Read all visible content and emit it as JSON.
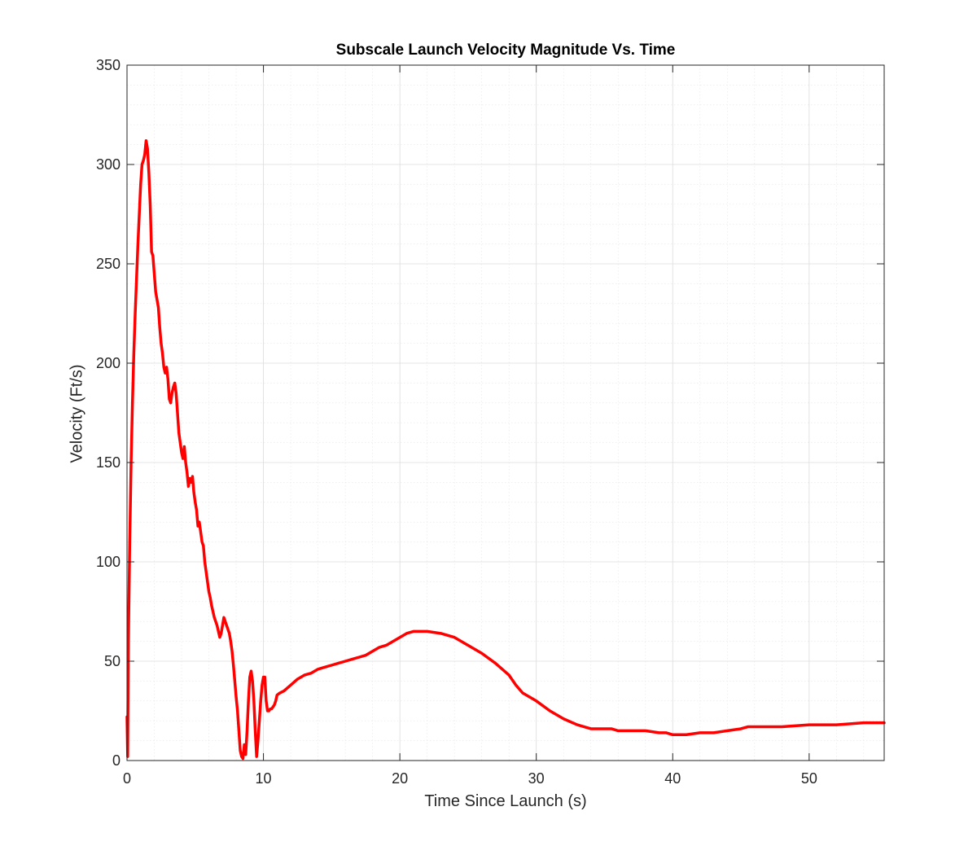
{
  "chart_data": {
    "type": "line",
    "title": "Subscale Launch Velocity Magnitude Vs. Time",
    "xlabel": "Time Since Launch (s)",
    "ylabel": "Velocity (Ft/s)",
    "xlim": [
      0,
      55.5
    ],
    "ylim": [
      0,
      350
    ],
    "xticks": [
      0,
      10,
      20,
      30,
      40,
      50
    ],
    "yticks": [
      0,
      50,
      100,
      150,
      200,
      250,
      300,
      350
    ],
    "xminor_step": 2,
    "yminor_step": 10,
    "grid": true,
    "minor_grid": true,
    "legend": "none",
    "series": [
      {
        "color": "#ff0000",
        "x": [
          0,
          0.05,
          0.1,
          0.2,
          0.3,
          0.4,
          0.5,
          0.6,
          0.8,
          1.0,
          1.1,
          1.2,
          1.3,
          1.4,
          1.5,
          1.6,
          1.7,
          1.8,
          1.9,
          2.0,
          2.1,
          2.2,
          2.3,
          2.4,
          2.5,
          2.6,
          2.7,
          2.8,
          2.9,
          3.0,
          3.1,
          3.2,
          3.3,
          3.4,
          3.5,
          3.6,
          3.7,
          3.8,
          3.9,
          4.0,
          4.1,
          4.2,
          4.3,
          4.4,
          4.5,
          4.6,
          4.7,
          4.8,
          4.9,
          5.0,
          5.1,
          5.2,
          5.3,
          5.4,
          5.5,
          5.6,
          5.7,
          5.8,
          5.9,
          6.0,
          6.1,
          6.2,
          6.3,
          6.4,
          6.5,
          6.6,
          6.7,
          6.8,
          6.9,
          7.0,
          7.1,
          7.2,
          7.3,
          7.4,
          7.5,
          7.6,
          7.7,
          7.8,
          7.9,
          8.0,
          8.1,
          8.2,
          8.3,
          8.4,
          8.5,
          8.6,
          8.7,
          8.8,
          8.9,
          9.0,
          9.1,
          9.2,
          9.3,
          9.4,
          9.5,
          9.6,
          9.7,
          9.8,
          9.9,
          10.0,
          10.1,
          10.2,
          10.3,
          10.4,
          10.5,
          10.6,
          10.7,
          10.8,
          10.9,
          11.0,
          11.2,
          11.5,
          12.0,
          12.5,
          13.0,
          13.5,
          14.0,
          14.5,
          15.0,
          15.5,
          16.0,
          16.5,
          17.0,
          17.5,
          18.0,
          18.5,
          19.0,
          19.5,
          20.0,
          20.5,
          21.0,
          21.5,
          22.0,
          23.0,
          24.0,
          25.0,
          26.0,
          27.0,
          28.0,
          28.5,
          29.0,
          30.0,
          31.0,
          32.0,
          33.0,
          34.0,
          35.0,
          35.5,
          36.0,
          37.0,
          38.0,
          39.0,
          39.5,
          40.0,
          40.5,
          41.0,
          42.0,
          43.0,
          44.0,
          45.0,
          45.5,
          46.0,
          48.0,
          50.0,
          52.0,
          54.0,
          55.5
        ],
        "y": [
          22,
          2,
          60,
          110,
          150,
          180,
          205,
          225,
          260,
          290,
          300,
          302,
          305,
          312,
          308,
          296,
          280,
          256,
          254,
          245,
          236,
          232,
          228,
          218,
          210,
          205,
          198,
          195,
          198,
          192,
          182,
          180,
          185,
          188,
          190,
          185,
          175,
          165,
          160,
          155,
          152,
          158,
          150,
          145,
          138,
          142,
          140,
          143,
          135,
          130,
          126,
          118,
          120,
          115,
          110,
          108,
          100,
          95,
          90,
          85,
          82,
          78,
          75,
          72,
          70,
          68,
          65,
          62,
          64,
          68,
          72,
          70,
          68,
          66,
          64,
          60,
          55,
          48,
          40,
          32,
          25,
          15,
          5,
          2,
          1,
          8,
          3,
          15,
          30,
          42,
          45,
          40,
          30,
          15,
          2,
          10,
          20,
          30,
          38,
          42,
          42,
          30,
          25,
          25,
          26,
          26,
          27,
          28,
          30,
          33,
          34,
          35,
          38,
          41,
          43,
          44,
          46,
          47,
          48,
          49,
          50,
          51,
          52,
          53,
          55,
          57,
          58,
          60,
          62,
          64,
          65,
          65,
          65,
          64,
          62,
          58,
          54,
          49,
          43,
          38,
          34,
          30,
          25,
          21,
          18,
          16,
          16,
          16,
          15,
          15,
          15,
          14,
          14,
          13,
          13,
          13,
          14,
          14,
          15,
          16,
          17,
          17,
          17,
          18,
          18,
          19,
          19
        ]
      }
    ]
  }
}
